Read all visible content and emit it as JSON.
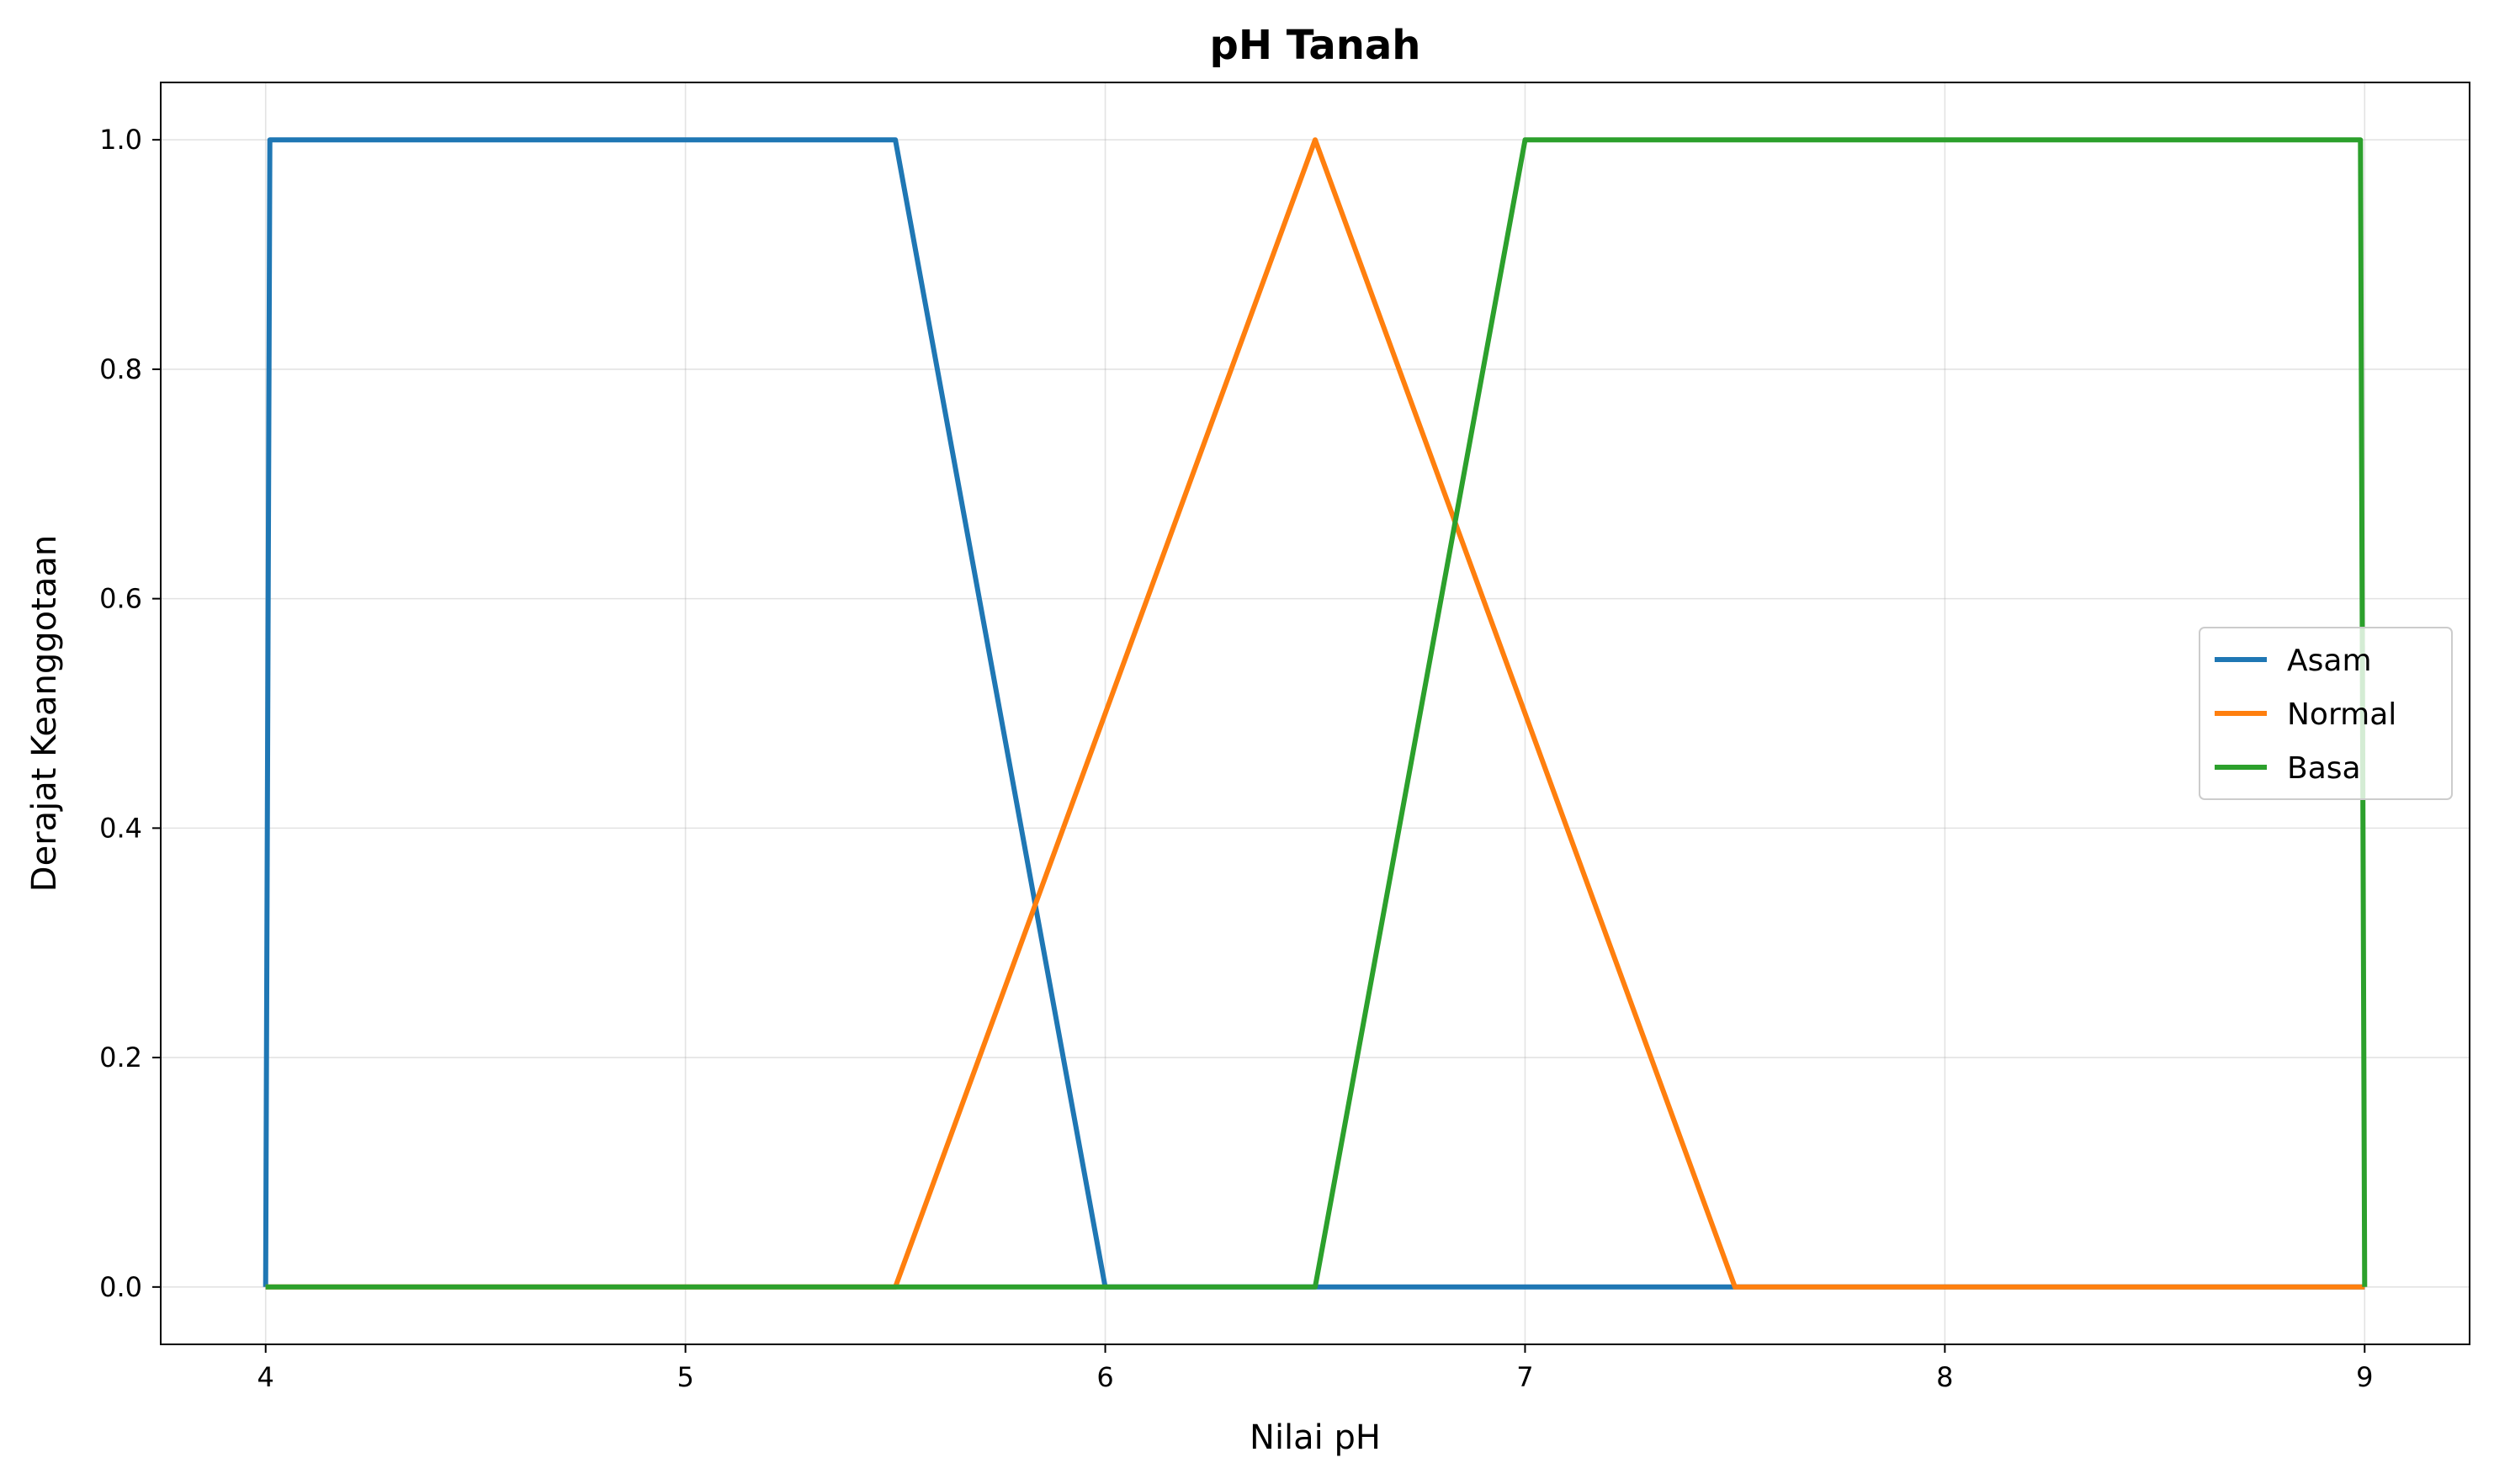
{
  "chart_data": {
    "type": "line",
    "title": "pH Tanah",
    "xlabel": "Nilai pH",
    "ylabel": "Derajat Keanggotaan",
    "xlim": [
      3.75,
      9.25
    ],
    "ylim": [
      -0.05,
      1.05
    ],
    "xticks": [
      "4",
      "5",
      "6",
      "7",
      "8",
      "9"
    ],
    "yticks": [
      "0.0",
      "0.2",
      "0.4",
      "0.6",
      "0.8",
      "1.0"
    ],
    "grid": true,
    "legend_position": "center-right",
    "series": [
      {
        "name": "Asam",
        "color": "#1f77b4",
        "x": [
          4.0,
          4.01,
          5.5,
          6.0,
          9.0
        ],
        "y": [
          0.0,
          1.0,
          1.0,
          0.0,
          0.0
        ]
      },
      {
        "name": "Normal",
        "color": "#ff7f0e",
        "x": [
          4.0,
          5.5,
          6.5,
          7.5,
          9.0
        ],
        "y": [
          0.0,
          0.0,
          1.0,
          0.0,
          0.0
        ]
      },
      {
        "name": "Basa",
        "color": "#2ca02c",
        "x": [
          4.0,
          6.5,
          7.0,
          8.99,
          9.0
        ],
        "y": [
          0.0,
          0.0,
          1.0,
          1.0,
          0.0
        ]
      }
    ]
  }
}
